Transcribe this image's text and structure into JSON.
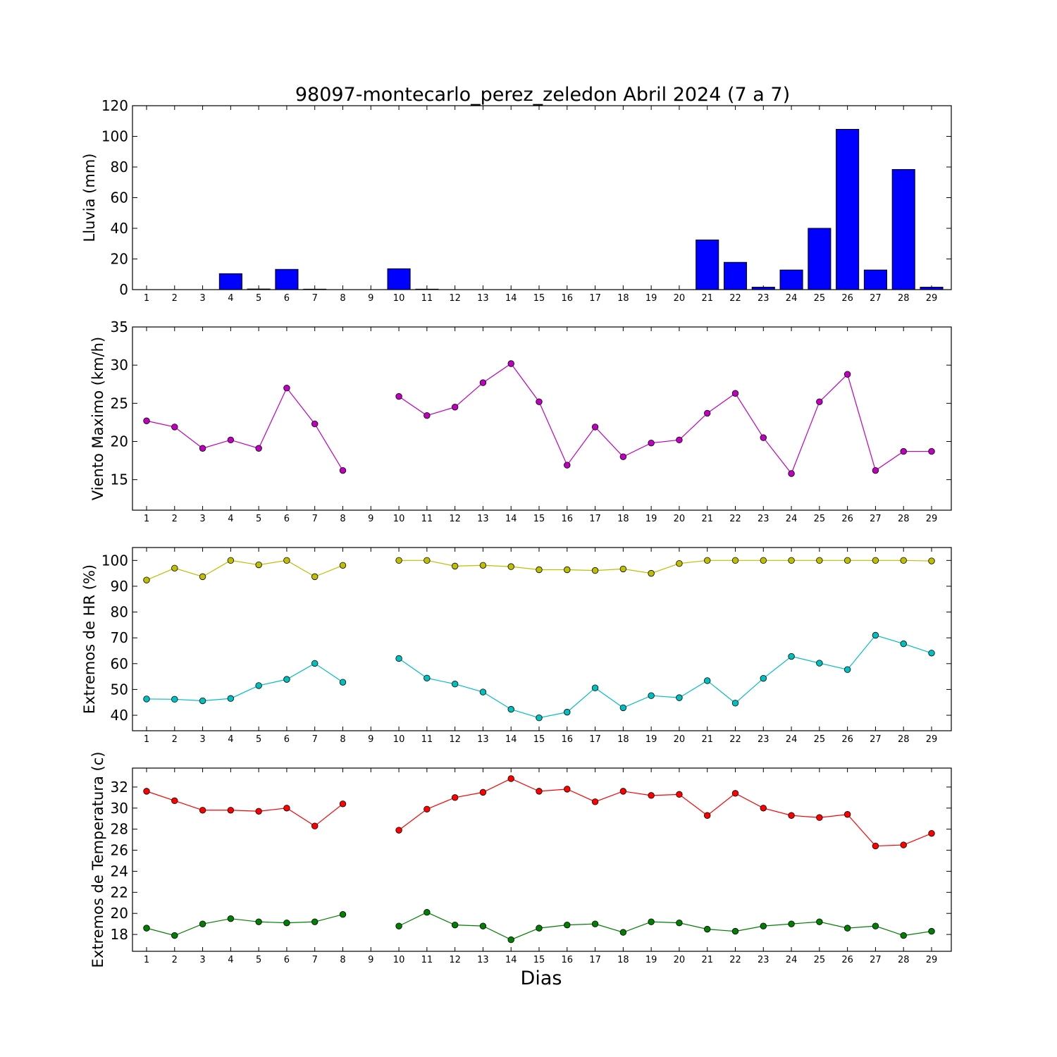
{
  "title": "98097-montecarlo_perez_zeledon Abril 2024  (7 a 7)",
  "xlabel": "Dias",
  "chart_data": [
    {
      "type": "bar",
      "ylabel": "Lluvia (mm)",
      "ylim": [
        0,
        120
      ],
      "yticks": [
        0,
        20,
        40,
        60,
        80,
        100,
        120
      ],
      "x": [
        1,
        2,
        3,
        4,
        5,
        6,
        7,
        8,
        9,
        10,
        11,
        12,
        13,
        14,
        15,
        16,
        17,
        18,
        19,
        20,
        21,
        22,
        23,
        24,
        25,
        26,
        27,
        28,
        29
      ],
      "series": [
        {
          "color": "#0000ff",
          "values": [
            0,
            0,
            0,
            10.4,
            0.4,
            13.2,
            0.3,
            0,
            0,
            13.6,
            0.3,
            0,
            0,
            0,
            0,
            0,
            0,
            0,
            0,
            0,
            32.4,
            17.8,
            1.6,
            12.8,
            40,
            104.6,
            12.8,
            78.4,
            1.6
          ]
        }
      ]
    },
    {
      "type": "line",
      "ylabel": "Viento Maximo (km/h)",
      "ylim": [
        11,
        35
      ],
      "yticks": [
        15,
        20,
        25,
        30,
        35
      ],
      "x": [
        1,
        2,
        3,
        4,
        5,
        6,
        7,
        8,
        9,
        10,
        11,
        12,
        13,
        14,
        15,
        16,
        17,
        18,
        19,
        20,
        21,
        22,
        23,
        24,
        25,
        26,
        27,
        28,
        29
      ],
      "series": [
        {
          "color": "#bf00bf",
          "values": [
            22.7,
            21.9,
            19.1,
            20.2,
            19.1,
            27.0,
            22.3,
            16.2,
            null,
            25.9,
            23.4,
            24.5,
            27.7,
            30.2,
            25.2,
            16.9,
            21.9,
            18.0,
            19.8,
            20.2,
            23.7,
            26.3,
            20.5,
            15.8,
            25.2,
            28.8,
            16.2,
            18.7,
            18.7
          ]
        }
      ]
    },
    {
      "type": "line",
      "ylabel": "Extremos de HR (%)",
      "ylim": [
        34,
        105
      ],
      "yticks": [
        40,
        50,
        60,
        70,
        80,
        90,
        100
      ],
      "x": [
        1,
        2,
        3,
        4,
        5,
        6,
        7,
        8,
        9,
        10,
        11,
        12,
        13,
        14,
        15,
        16,
        17,
        18,
        19,
        20,
        21,
        22,
        23,
        24,
        25,
        26,
        27,
        28,
        29
      ],
      "series": [
        {
          "color": "#bfbf00",
          "values": [
            92.4,
            97.0,
            93.7,
            100,
            98.3,
            100,
            93.7,
            98.1,
            null,
            100,
            100,
            97.8,
            98.1,
            97.6,
            96.4,
            96.4,
            96.1,
            96.7,
            95.0,
            98.8,
            100,
            100,
            100,
            100,
            100,
            100,
            100,
            100,
            99.8
          ]
        },
        {
          "color": "#00bfbf",
          "values": [
            46.3,
            46.2,
            45.6,
            46.5,
            51.5,
            53.9,
            60.1,
            52.8,
            null,
            62.0,
            54.4,
            52.1,
            49.0,
            42.3,
            39.0,
            41.2,
            50.6,
            42.9,
            47.6,
            46.8,
            53.4,
            44.7,
            54.3,
            62.8,
            60.2,
            57.7,
            71.0,
            67.7,
            64.1
          ]
        }
      ]
    },
    {
      "type": "line",
      "ylabel": "Extremos de Temperatura (c)",
      "ylim": [
        16.4,
        33.8
      ],
      "yticks": [
        18,
        20,
        22,
        24,
        26,
        28,
        30,
        32
      ],
      "x": [
        1,
        2,
        3,
        4,
        5,
        6,
        7,
        8,
        9,
        10,
        11,
        12,
        13,
        14,
        15,
        16,
        17,
        18,
        19,
        20,
        21,
        22,
        23,
        24,
        25,
        26,
        27,
        28,
        29
      ],
      "series": [
        {
          "color": "#ff0000",
          "values": [
            31.6,
            30.7,
            29.8,
            29.8,
            29.7,
            30.0,
            28.3,
            30.4,
            null,
            27.9,
            29.9,
            31.0,
            31.5,
            32.8,
            31.6,
            31.8,
            30.6,
            31.6,
            31.2,
            31.3,
            29.3,
            31.4,
            30.0,
            29.3,
            29.1,
            29.4,
            26.4,
            26.5,
            27.6
          ]
        },
        {
          "color": "#007f00",
          "values": [
            18.6,
            17.9,
            19.0,
            19.5,
            19.2,
            19.1,
            19.2,
            19.9,
            null,
            18.8,
            20.1,
            18.9,
            18.8,
            17.5,
            18.6,
            18.9,
            19.0,
            18.2,
            19.2,
            19.1,
            18.5,
            18.3,
            18.8,
            19.0,
            19.2,
            18.6,
            18.8,
            17.9,
            18.3
          ]
        }
      ]
    }
  ]
}
